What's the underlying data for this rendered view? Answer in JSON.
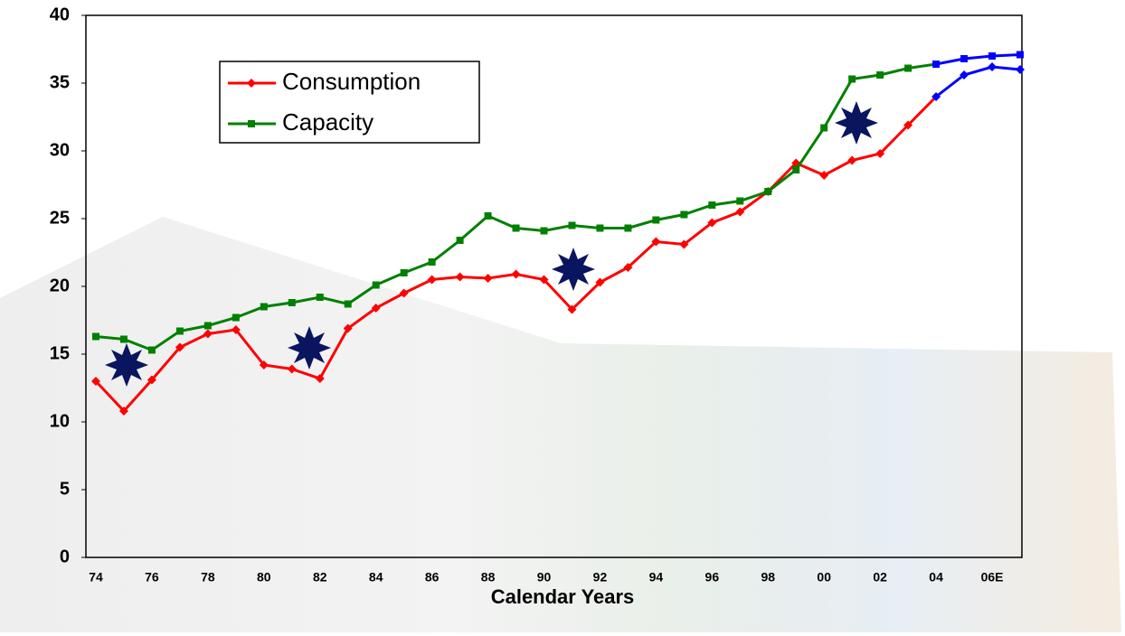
{
  "chart_data": {
    "type": "line",
    "x_label": "Calendar Years",
    "categories": [
      "74",
      null,
      "76",
      null,
      "78",
      null,
      "80",
      null,
      "82",
      null,
      "84",
      null,
      "86",
      null,
      "88",
      null,
      "90",
      null,
      "92",
      null,
      "94",
      null,
      "96",
      null,
      "98",
      null,
      "00",
      null,
      "02",
      null,
      "04",
      null,
      "06E",
      null
    ],
    "series": [
      {
        "name": "Consumption",
        "color": "#ff0000",
        "marker": "diamond",
        "values": [
          13.0,
          10.8,
          13.1,
          15.5,
          16.5,
          16.8,
          14.2,
          13.9,
          13.2,
          16.9,
          18.4,
          19.5,
          20.5,
          20.7,
          20.6,
          20.9,
          20.5,
          18.3,
          20.3,
          21.4,
          23.3,
          23.1,
          24.7,
          25.5,
          27.0,
          29.1,
          28.2,
          29.3,
          29.8,
          31.9,
          34.0,
          35.6,
          36.2,
          36.0
        ]
      },
      {
        "name": "Capacity",
        "color": "#008000",
        "marker": "square",
        "values": [
          16.3,
          16.1,
          15.3,
          16.7,
          17.1,
          17.7,
          18.5,
          18.8,
          19.2,
          18.7,
          20.1,
          21.0,
          21.8,
          23.4,
          25.2,
          24.3,
          24.1,
          24.5,
          24.3,
          24.3,
          24.9,
          25.3,
          26.0,
          26.3,
          27.0,
          28.6,
          31.7,
          35.3,
          35.6,
          36.1,
          36.4,
          36.8,
          37.0,
          37.1
        ]
      }
    ],
    "projection_start": "04",
    "projection_color": "#0000ff",
    "ylim": [
      0,
      40
    ],
    "yticks": [
      0,
      5,
      10,
      15,
      20,
      25,
      30,
      35,
      40
    ],
    "grid": false
  }
}
